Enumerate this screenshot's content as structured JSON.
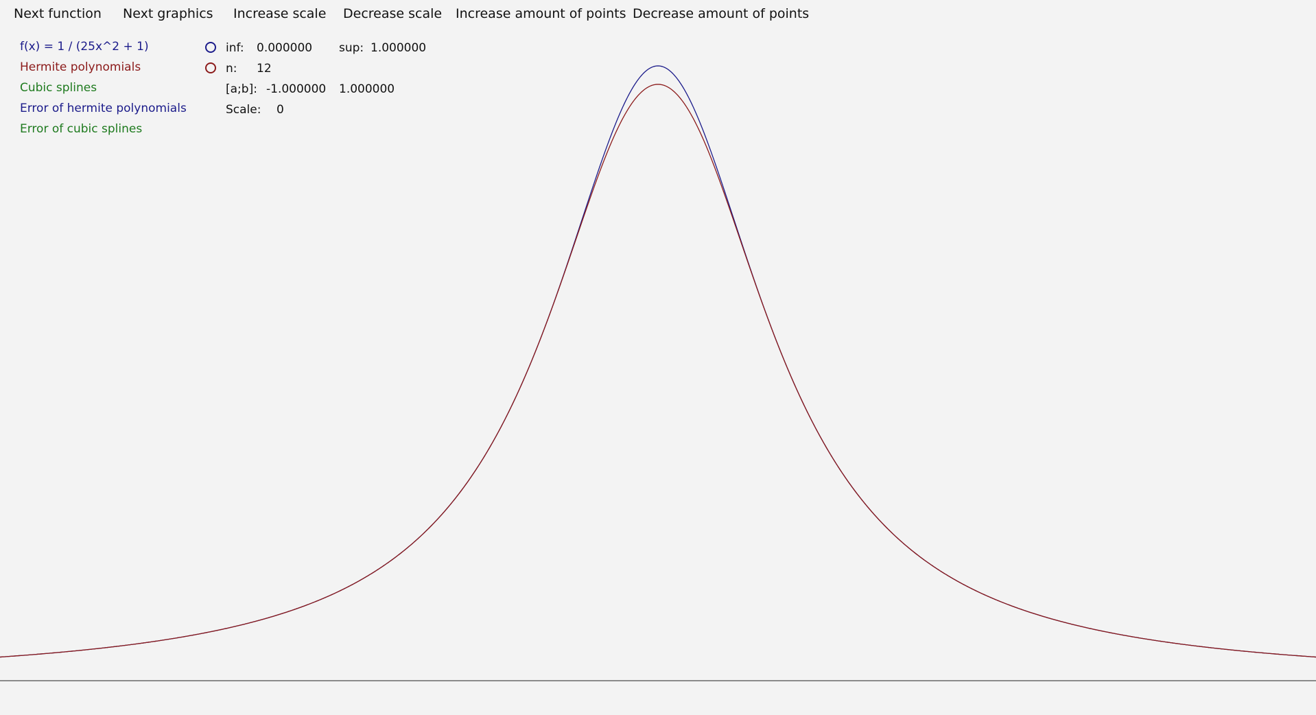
{
  "menu": {
    "next_function": "Next function",
    "next_graphics": "Next graphics",
    "increase_scale": "Increase scale",
    "decrease_scale": "Decrease scale",
    "increase_points": "Increase amount of points",
    "decrease_points": "Decrease amount of points"
  },
  "legend": {
    "function": "f(x) = 1 / (25x^2 + 1)",
    "hermite": "Hermite polynomials",
    "splines": "Cubic splines",
    "hermite_error": "Error of hermite polynomials",
    "splines_error": "Error of cubic splines"
  },
  "info": {
    "inf_label": "inf:",
    "inf_value": "0.000000",
    "sup_label": "sup:",
    "sup_value": "1.000000",
    "n_label": "n:",
    "n_value": "12",
    "interval_label": "[a;b]:",
    "a_value": "-1.000000",
    "b_value": "1.000000",
    "scale_label": "Scale:",
    "scale_value": "0"
  },
  "colors": {
    "function": "#1b1b8a",
    "hermite": "#8b1a1a",
    "splines": "#1e7a1e",
    "hermite_error": "#1b1b8a",
    "splines_error": "#1e7a1e",
    "axis": "#222222"
  },
  "chart_data": {
    "type": "line",
    "xlim": [
      -1,
      1
    ],
    "ylim": [
      0,
      1
    ],
    "series": [
      {
        "name": "f(x) = 1 / (25x^2 + 1)",
        "color": "#1b1b8a",
        "formula": "1/(25x^2+1)"
      },
      {
        "name": "Hermite polynomials",
        "color": "#8b1a1a",
        "peak": 0.97
      }
    ]
  }
}
